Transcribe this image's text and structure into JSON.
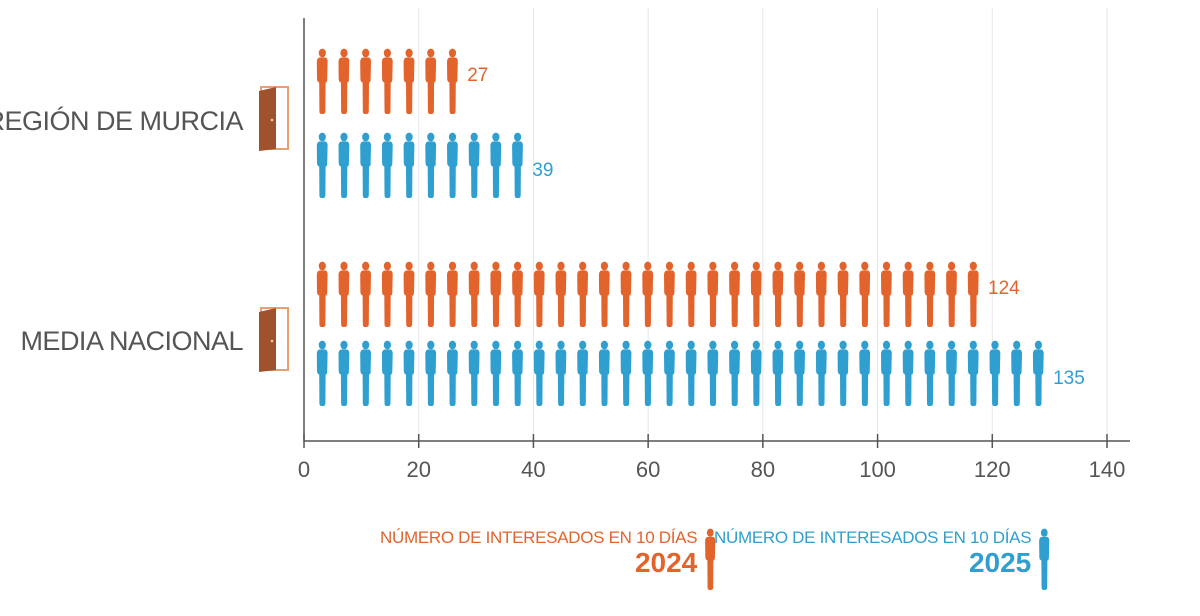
{
  "chart_data": {
    "type": "bar",
    "style": "pictogram",
    "categories": [
      "REGIÓN DE MURCIA",
      "MEDIA NACIONAL"
    ],
    "series": [
      {
        "name": "NÚMERO DE INTERESADOS EN 10 DÍAS 2024",
        "year": "2024",
        "color": "#e2642c",
        "values": [
          27,
          124
        ]
      },
      {
        "name": "NÚMERO DE INTERESADOS EN 10 DÍAS 2025",
        "year": "2025",
        "color": "#2f9fd0",
        "values": [
          39,
          135
        ]
      }
    ],
    "x_ticks": [
      "0",
      "20",
      "40",
      "60",
      "80",
      "100",
      "120",
      "140"
    ],
    "xlim": [
      0,
      140
    ],
    "grid": true,
    "legend": "bottom"
  },
  "legend": {
    "label": "NÚMERO DE INTERESADOS EN 10 DÍAS",
    "items": [
      {
        "year": "2024",
        "color": "#e2642c",
        "icon": "person-icon"
      },
      {
        "year": "2025",
        "color": "#2f9fd0",
        "icon": "person-icon"
      }
    ]
  },
  "category_icon": "door-icon",
  "colors": {
    "axis": "#555555",
    "grid": "#e6e6e6",
    "door": "#a0522d"
  }
}
